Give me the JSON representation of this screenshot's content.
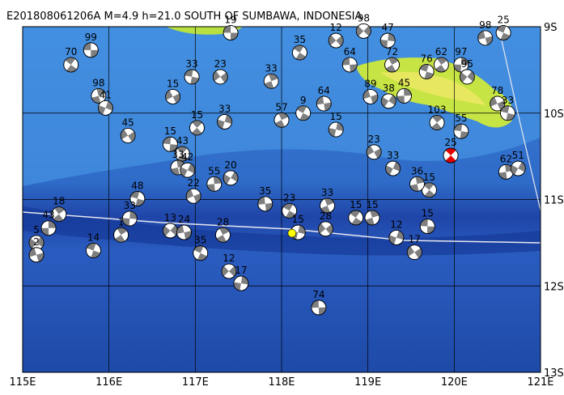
{
  "title": "E201808061206A M=4.9 h=21.0 SOUTH OF SUMBAWA, INDONESIA",
  "map": {
    "xlim": [
      115,
      121
    ],
    "ylim": [
      -13,
      -9
    ],
    "xticks": [
      {
        "value": 115,
        "label": "115E"
      },
      {
        "value": 116,
        "label": "116E"
      },
      {
        "value": 117,
        "label": "117E"
      },
      {
        "value": 118,
        "label": "118E"
      },
      {
        "value": 119,
        "label": "119E"
      },
      {
        "value": 120,
        "label": "120E"
      },
      {
        "value": 121,
        "label": "121E"
      }
    ],
    "yticks": [
      {
        "value": -9,
        "label": "9S"
      },
      {
        "value": -10,
        "label": "10S"
      },
      {
        "value": -11,
        "label": "11S"
      },
      {
        "value": -12,
        "label": "12S"
      },
      {
        "value": -13,
        "label": "13S"
      }
    ],
    "grid": true,
    "epicenter": {
      "lon": 118.12,
      "lat": -11.39,
      "color": "#ffff00"
    }
  },
  "events": [
    {
      "lon": 115.79,
      "lat": -9.27,
      "depth": 99,
      "color": "#7f7f7f"
    },
    {
      "lon": 115.56,
      "lat": -9.44,
      "depth": 70,
      "color": "#7f7f7f"
    },
    {
      "lon": 115.88,
      "lat": -9.8,
      "depth": 98,
      "color": "#7f7f7f"
    },
    {
      "lon": 115.96,
      "lat": -9.94,
      "depth": 41,
      "color": "#7f7f7f"
    },
    {
      "lon": 116.22,
      "lat": -10.26,
      "depth": 45,
      "color": "#7f7f7f"
    },
    {
      "lon": 116.71,
      "lat": -10.36,
      "depth": 15,
      "color": "#7f7f7f"
    },
    {
      "lon": 116.85,
      "lat": -10.47,
      "depth": 43,
      "color": "#7f7f7f"
    },
    {
      "lon": 116.8,
      "lat": -10.63,
      "depth": 33,
      "color": "#7f7f7f"
    },
    {
      "lon": 116.91,
      "lat": -10.66,
      "depth": 42,
      "color": "#7f7f7f"
    },
    {
      "lon": 116.74,
      "lat": -9.81,
      "depth": 15,
      "color": "#7f7f7f"
    },
    {
      "lon": 116.96,
      "lat": -9.58,
      "depth": 33,
      "color": "#7f7f7f"
    },
    {
      "lon": 117.02,
      "lat": -10.17,
      "depth": 15,
      "color": "#7f7f7f"
    },
    {
      "lon": 117.22,
      "lat": -10.82,
      "depth": 55,
      "color": "#7f7f7f"
    },
    {
      "lon": 117.41,
      "lat": -10.75,
      "depth": 20,
      "color": "#7f7f7f"
    },
    {
      "lon": 116.98,
      "lat": -10.96,
      "depth": 22,
      "color": "#7f7f7f"
    },
    {
      "lon": 116.33,
      "lat": -10.99,
      "depth": 48,
      "color": "#7f7f7f"
    },
    {
      "lon": 115.42,
      "lat": -11.17,
      "depth": 18,
      "color": "#7f7f7f"
    },
    {
      "lon": 115.3,
      "lat": -11.33,
      "depth": 43,
      "color": "#7f7f7f"
    },
    {
      "lon": 115.16,
      "lat": -11.5,
      "depth": 5,
      "color": "#7f7f7f"
    },
    {
      "lon": 115.16,
      "lat": -11.64,
      "depth": 2,
      "color": "#7f7f7f"
    },
    {
      "lon": 115.82,
      "lat": -11.59,
      "depth": 14,
      "color": "#7f7f7f"
    },
    {
      "lon": 116.14,
      "lat": -11.41,
      "depth": 1,
      "color": "#7f7f7f"
    },
    {
      "lon": 116.24,
      "lat": -11.22,
      "depth": 33,
      "color": "#7f7f7f"
    },
    {
      "lon": 116.71,
      "lat": -11.36,
      "depth": 13,
      "color": "#7f7f7f"
    },
    {
      "lon": 116.87,
      "lat": -11.38,
      "depth": 24,
      "color": "#7f7f7f"
    },
    {
      "lon": 117.06,
      "lat": -11.62,
      "depth": 35,
      "color": "#7f7f7f"
    },
    {
      "lon": 117.32,
      "lat": -11.41,
      "depth": 28,
      "color": "#7f7f7f"
    },
    {
      "lon": 117.53,
      "lat": -11.97,
      "depth": 17,
      "color": "#7f7f7f"
    },
    {
      "lon": 117.39,
      "lat": -11.83,
      "depth": 12,
      "color": "#7f7f7f"
    },
    {
      "lon": 117.81,
      "lat": -11.05,
      "depth": 35,
      "color": "#7f7f7f"
    },
    {
      "lon": 118.09,
      "lat": -11.13,
      "depth": 23,
      "color": "#7f7f7f"
    },
    {
      "lon": 118.53,
      "lat": -11.07,
      "depth": 33,
      "color": "#7f7f7f"
    },
    {
      "lon": 118.19,
      "lat": -11.38,
      "depth": 15,
      "color": "#7f7f7f"
    },
    {
      "lon": 118.51,
      "lat": -11.34,
      "depth": 28,
      "color": "#7f7f7f"
    },
    {
      "lon": 118.43,
      "lat": -12.25,
      "depth": 74,
      "color": "#7f7f7f"
    },
    {
      "lon": 118.86,
      "lat": -11.21,
      "depth": 15,
      "color": "#7f7f7f"
    },
    {
      "lon": 119.05,
      "lat": -11.21,
      "depth": 15,
      "color": "#7f7f7f"
    },
    {
      "lon": 119.33,
      "lat": -11.44,
      "depth": 12,
      "color": "#7f7f7f"
    },
    {
      "lon": 119.54,
      "lat": -11.61,
      "depth": 17,
      "color": "#7f7f7f"
    },
    {
      "lon": 119.69,
      "lat": -11.31,
      "depth": 15,
      "color": "#7f7f7f"
    },
    {
      "lon": 119.71,
      "lat": -10.89,
      "depth": 15,
      "color": "#7f7f7f"
    },
    {
      "lon": 119.57,
      "lat": -10.82,
      "depth": 36,
      "color": "#7f7f7f"
    },
    {
      "lon": 119.29,
      "lat": -10.64,
      "depth": 33,
      "color": "#7f7f7f"
    },
    {
      "lon": 119.07,
      "lat": -10.45,
      "depth": 23,
      "color": "#7f7f7f"
    },
    {
      "lon": 120.08,
      "lat": -10.21,
      "depth": 55,
      "color": "#7f7f7f"
    },
    {
      "lon": 119.96,
      "lat": -10.49,
      "depth": 25,
      "color": "#e00000"
    },
    {
      "lon": 120.6,
      "lat": -10.68,
      "depth": 62,
      "color": "#7f7f7f"
    },
    {
      "lon": 120.74,
      "lat": -10.64,
      "depth": 51,
      "color": "#7f7f7f"
    },
    {
      "lon": 120.5,
      "lat": -9.89,
      "depth": 78,
      "color": "#7f7f7f"
    },
    {
      "lon": 120.62,
      "lat": -10.0,
      "depth": 33,
      "color": "#7f7f7f"
    },
    {
      "lon": 119.8,
      "lat": -10.11,
      "depth": 103,
      "color": "#7f7f7f"
    },
    {
      "lon": 119.42,
      "lat": -9.8,
      "depth": 45,
      "color": "#7f7f7f"
    },
    {
      "lon": 119.24,
      "lat": -9.86,
      "depth": 38,
      "color": "#7f7f7f"
    },
    {
      "lon": 119.03,
      "lat": -9.81,
      "depth": 89,
      "color": "#7f7f7f"
    },
    {
      "lon": 119.68,
      "lat": -9.52,
      "depth": 76,
      "color": "#7f7f7f"
    },
    {
      "lon": 119.85,
      "lat": -9.44,
      "depth": 62,
      "color": "#7f7f7f"
    },
    {
      "lon": 120.08,
      "lat": -9.44,
      "depth": 97,
      "color": "#7f7f7f"
    },
    {
      "lon": 120.15,
      "lat": -9.58,
      "depth": 95,
      "color": "#7f7f7f"
    },
    {
      "lon": 120.36,
      "lat": -9.13,
      "depth": 98,
      "color": "#7f7f7f"
    },
    {
      "lon": 120.57,
      "lat": -9.07,
      "depth": 25,
      "color": "#7f7f7f"
    },
    {
      "lon": 119.28,
      "lat": -9.44,
      "depth": 72,
      "color": "#7f7f7f"
    },
    {
      "lon": 119.23,
      "lat": -9.16,
      "depth": 47,
      "color": "#7f7f7f"
    },
    {
      "lon": 118.95,
      "lat": -9.05,
      "depth": 98,
      "color": "#7f7f7f"
    },
    {
      "lon": 118.49,
      "lat": -9.89,
      "depth": 64,
      "color": "#7f7f7f"
    },
    {
      "lon": 118.25,
      "lat": -10.0,
      "depth": 9,
      "color": "#7f7f7f"
    },
    {
      "lon": 118.0,
      "lat": -10.08,
      "depth": 57,
      "color": "#7f7f7f"
    },
    {
      "lon": 118.63,
      "lat": -10.19,
      "depth": 15,
      "color": "#7f7f7f"
    },
    {
      "lon": 118.63,
      "lat": -9.16,
      "depth": 12,
      "color": "#7f7f7f"
    },
    {
      "lon": 118.79,
      "lat": -9.44,
      "depth": 64,
      "color": "#7f7f7f"
    },
    {
      "lon": 118.21,
      "lat": -9.3,
      "depth": 35,
      "color": "#7f7f7f"
    },
    {
      "lon": 117.88,
      "lat": -9.63,
      "depth": 33,
      "color": "#7f7f7f"
    },
    {
      "lon": 117.34,
      "lat": -10.1,
      "depth": 33,
      "color": "#7f7f7f"
    },
    {
      "lon": 117.29,
      "lat": -9.58,
      "depth": 23,
      "color": "#7f7f7f"
    },
    {
      "lon": 117.41,
      "lat": -9.07,
      "depth": 19,
      "color": "#7f7f7f"
    }
  ]
}
